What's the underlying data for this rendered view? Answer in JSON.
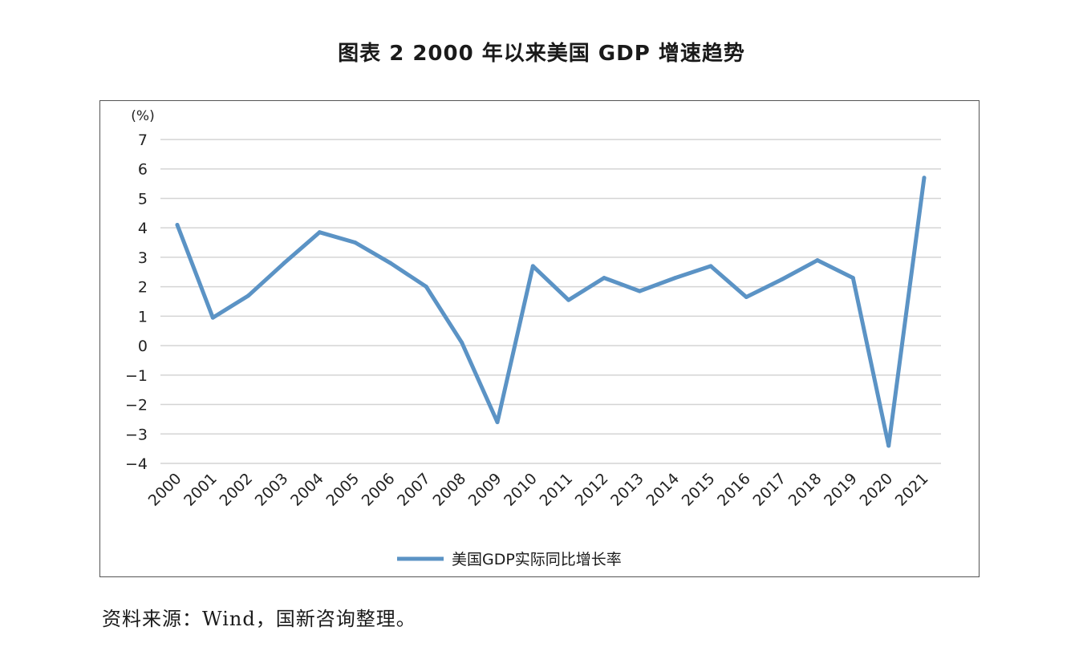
{
  "title": "图表 2  2000 年以来美国 GDP 增速趋势",
  "source": "资料来源：Wind，国新咨询整理。",
  "chart_data": {
    "type": "line",
    "unit_label": "(%)",
    "categories": [
      "2000",
      "2001",
      "2002",
      "2003",
      "2004",
      "2005",
      "2006",
      "2007",
      "2008",
      "2009",
      "2010",
      "2011",
      "2012",
      "2013",
      "2014",
      "2015",
      "2016",
      "2017",
      "2018",
      "2019",
      "2020",
      "2021"
    ],
    "series": [
      {
        "name": "美国GDP实际同比增长率",
        "color": "#5b93c5",
        "values": [
          4.1,
          0.95,
          1.7,
          2.8,
          3.85,
          3.5,
          2.8,
          2.0,
          0.1,
          -2.6,
          2.7,
          1.55,
          2.3,
          1.85,
          2.3,
          2.7,
          1.65,
          2.25,
          2.9,
          2.3,
          -3.4,
          5.7
        ]
      }
    ],
    "yticks": [
      7,
      6,
      5,
      4,
      3,
      2,
      1,
      0,
      -1,
      -2,
      -3,
      -4
    ],
    "ylim": [
      -4,
      7
    ],
    "grid": true,
    "legend_position": "bottom"
  }
}
